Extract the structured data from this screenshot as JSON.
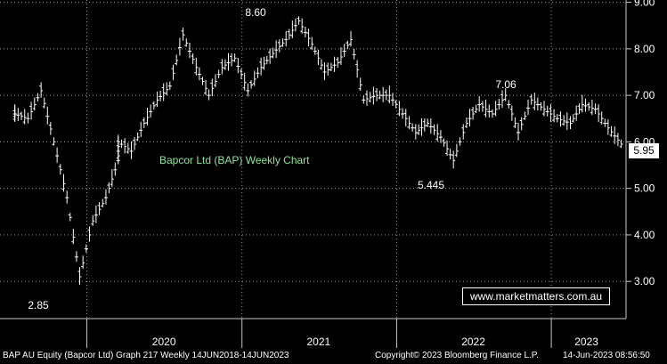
{
  "chart_data": {
    "type": "line",
    "title": "Bapcor Ltd (BAP) Weekly Chart",
    "ylim": [
      2.2,
      9.05
    ],
    "y_ticks": [
      "3.00",
      "4.00",
      "5.00",
      "6.00",
      "7.00",
      "8.00",
      "9.00"
    ],
    "x_ticks": [
      "2020",
      "2021",
      "2022",
      "2023"
    ],
    "annotations": [
      "8.60",
      "7.06",
      "5.445",
      "2.85"
    ],
    "last_price": "5.95",
    "x_dates": [
      "2019-07",
      "2019-08",
      "2019-09",
      "2019-10",
      "2019-11",
      "2019-12",
      "2020-01",
      "2020-02",
      "2020-03",
      "2020-03",
      "2020-04",
      "2020-05",
      "2020-06",
      "2020-07",
      "2020-08",
      "2020-09",
      "2020-10",
      "2020-11",
      "2020-12",
      "2021-01",
      "2021-02",
      "2021-03",
      "2021-04",
      "2021-05",
      "2021-06",
      "2021-07",
      "2021-08",
      "2021-09",
      "2021-10",
      "2021-11",
      "2021-12",
      "2022-01",
      "2022-02",
      "2022-03",
      "2022-04",
      "2022-05",
      "2022-06",
      "2022-07",
      "2022-08",
      "2022-09",
      "2022-10",
      "2022-11",
      "2022-12",
      "2023-01",
      "2023-02",
      "2023-03",
      "2023-04",
      "2023-05",
      "2023-06"
    ],
    "series": [
      {
        "values": [
          6.6,
          6.5,
          7.1,
          6.0,
          4.8,
          3.1,
          4.3,
          4.8,
          5.6,
          6.0,
          5.8,
          6.4,
          6.9,
          7.2,
          8.3,
          7.6,
          7.0,
          7.6,
          7.8,
          7.1,
          7.6,
          7.9,
          8.2,
          8.6,
          8.1,
          7.5,
          7.7,
          8.2,
          6.9,
          7.0,
          7.0,
          6.6,
          6.2,
          6.4,
          6.1,
          5.6,
          6.4,
          6.8,
          6.6,
          7.0,
          6.2,
          6.9,
          6.7,
          6.5,
          6.4,
          6.8,
          6.7,
          6.3,
          5.95
        ],
        "color": "#ffffff"
      }
    ]
  },
  "watermark": "www.marketmatters.com.au",
  "status_bar": {
    "left": "BAP AU Equity (Bapcor Ltd) Graph 217  Weekly 14JUN2018-14JUN2023",
    "center": "Copyright© 2023 Bloomberg Finance L.P.",
    "right": "14-Jun-2023 08:56:50"
  }
}
